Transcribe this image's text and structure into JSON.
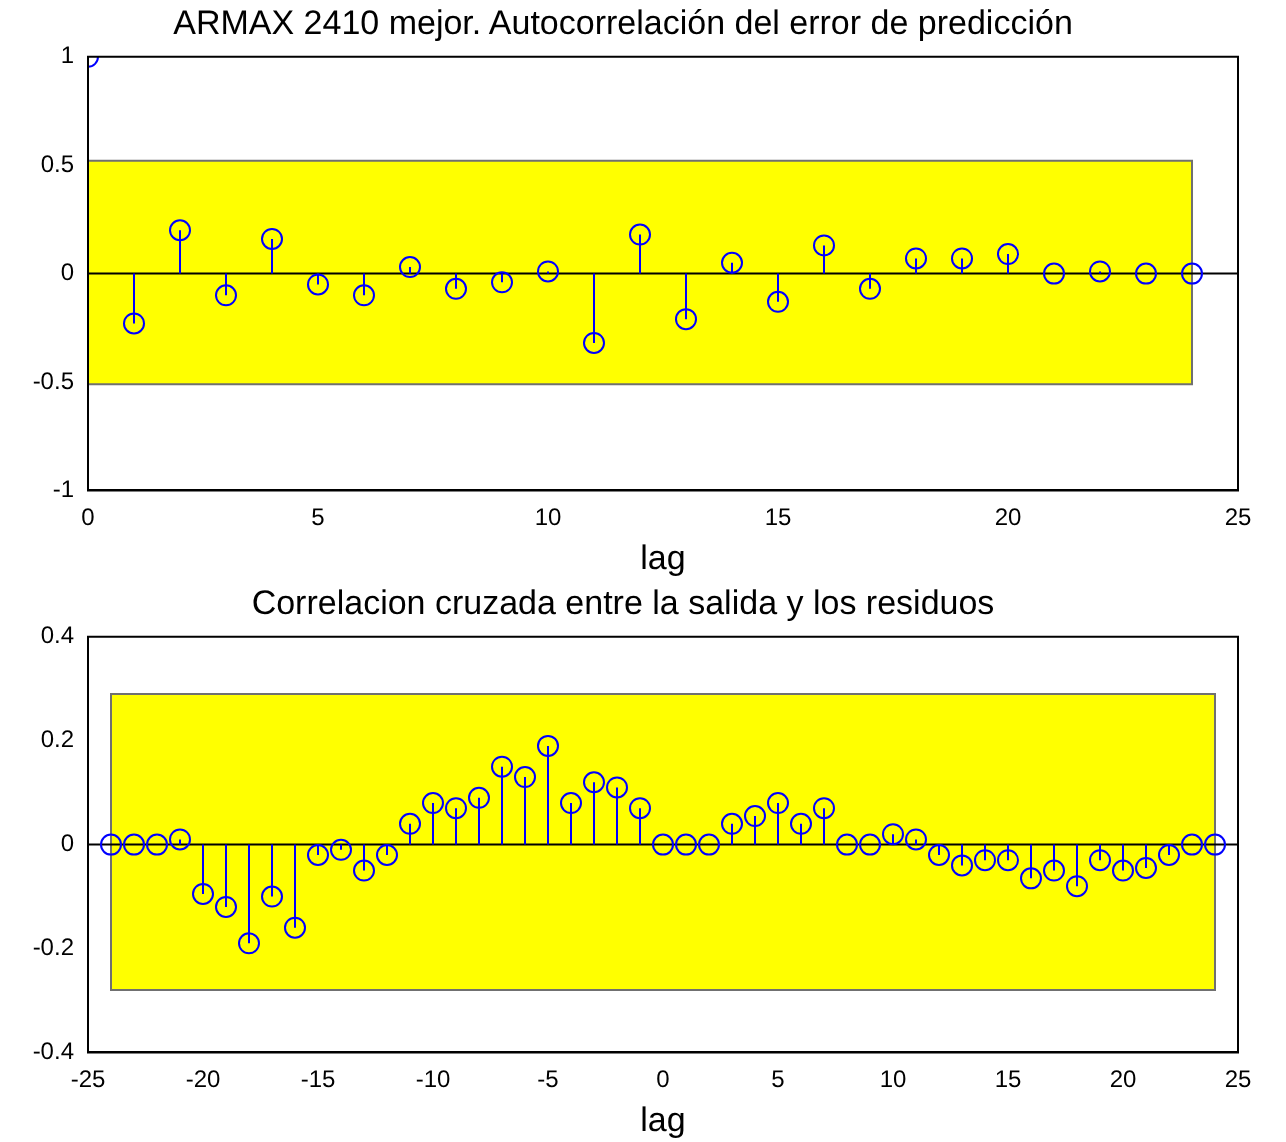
{
  "chart_data": [
    {
      "type": "lollipop",
      "title": "ARMAX 2410 mejor. Autocorrelación del error de predicción",
      "xlabel": "lag",
      "marker": "circle",
      "x": [
        0,
        1,
        2,
        3,
        4,
        5,
        6,
        7,
        8,
        9,
        10,
        11,
        12,
        13,
        14,
        15,
        16,
        17,
        18,
        19,
        20,
        21,
        22,
        23,
        24
      ],
      "series": [
        {
          "color": "#0000ff",
          "values": [
            1,
            -0.23,
            0.2,
            -0.1,
            0.16,
            -0.05,
            -0.1,
            0.03,
            -0.07,
            -0.04,
            0.01,
            -0.32,
            0.18,
            -0.21,
            0.05,
            -0.13,
            0.13,
            -0.07,
            0.07,
            0.07,
            0.09,
            0,
            0.01,
            0,
            0
          ]
        }
      ],
      "xlim": [
        0,
        25
      ],
      "xticks": [
        0,
        5,
        10,
        15,
        20,
        25
      ],
      "ylim": [
        -1,
        1
      ],
      "yticks": [
        -1,
        -0.5,
        0,
        0.5,
        1
      ],
      "bands": [
        {
          "axis": "y",
          "from": -0.51,
          "to": 0.52,
          "color": "#ffff00"
        }
      ]
    },
    {
      "type": "lollipop",
      "title": "Correlacion cruzada entre la salida y los residuos",
      "xlabel": "lag",
      "marker": "circle",
      "x": [
        -24,
        -23,
        -22,
        -21,
        -20,
        -19,
        -18,
        -17,
        -16,
        -15,
        -14,
        -13,
        -12,
        -11,
        -10,
        -9,
        -8,
        -7,
        -6,
        -5,
        -4,
        -3,
        -2,
        -1,
        0,
        1,
        2,
        3,
        4,
        5,
        6,
        7,
        8,
        9,
        10,
        11,
        12,
        13,
        14,
        15,
        16,
        17,
        18,
        19,
        20,
        21,
        22,
        23,
        24
      ],
      "series": [
        {
          "color": "#0000ff",
          "values": [
            0,
            0,
            0,
            0.01,
            -0.095,
            -0.12,
            -0.19,
            -0.1,
            -0.16,
            -0.02,
            -0.01,
            -0.05,
            -0.02,
            0.04,
            0.08,
            0.07,
            0.09,
            0.15,
            0.13,
            0.19,
            0.08,
            0.12,
            0.11,
            0.07,
            0,
            0,
            0,
            0.04,
            0.055,
            0.08,
            0.04,
            0.07,
            0,
            0,
            0.02,
            0.01,
            -0.02,
            -0.04,
            -0.03,
            -0.03,
            -0.065,
            -0.05,
            -0.08,
            -0.03,
            -0.05,
            -0.045,
            -0.02,
            0,
            0
          ]
        }
      ],
      "xlim": [
        -25,
        25
      ],
      "xticks": [
        -25,
        -20,
        -15,
        -10,
        -5,
        0,
        5,
        10,
        15,
        20,
        25
      ],
      "ylim": [
        -0.4,
        0.4
      ],
      "yticks": [
        -0.4,
        -0.2,
        0,
        0.2,
        0.4
      ],
      "bands": [
        {
          "axis": "y",
          "from": -0.28,
          "to": 0.29,
          "color": "#ffff00"
        }
      ]
    }
  ]
}
